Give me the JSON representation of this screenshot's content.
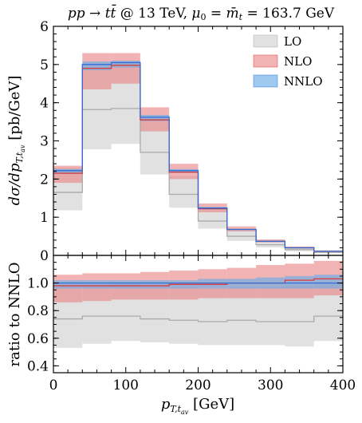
{
  "chart_data": {
    "type": "step-band",
    "title": "pp → tt̄ @ 13 TeV, μ₀ = m̄ₜ = 163.7 GeV",
    "xlabel": "p_{T,t_av} [GeV]",
    "ylabel_top": "dσ/dp_{T,t_av} [pb/GeV]",
    "ylabel_bottom": "ratio to NNLO",
    "xlim": [
      0,
      400
    ],
    "ylim_top": [
      0,
      6
    ],
    "ylim_bottom": [
      0.35,
      1.2
    ],
    "x_ticks": [
      "0",
      "100",
      "200",
      "300",
      "400"
    ],
    "y_ticks_top": [
      "0",
      "1",
      "2",
      "3",
      "4",
      "5",
      "6"
    ],
    "y_ticks_bottom": [
      "0.4",
      "0.6",
      "0.8",
      "1.0"
    ],
    "bin_edges": [
      0,
      40,
      80,
      120,
      160,
      200,
      240,
      280,
      320,
      360,
      400
    ],
    "legend_position": "top-right",
    "series": [
      {
        "name": "LO",
        "color": "#c8c8c8",
        "line_color": "#aaaaaa",
        "central": [
          1.65,
          3.82,
          3.85,
          2.7,
          1.6,
          0.9,
          0.5,
          0.28,
          0.15,
          0.08
        ],
        "lower": [
          1.18,
          2.78,
          2.92,
          2.12,
          1.25,
          0.7,
          0.38,
          0.21,
          0.11,
          0.06
        ],
        "upper": [
          2.3,
          4.95,
          4.95,
          3.55,
          2.08,
          1.18,
          0.65,
          0.37,
          0.2,
          0.11
        ],
        "ratio_central": [
          0.74,
          0.76,
          0.76,
          0.74,
          0.73,
          0.72,
          0.73,
          0.72,
          0.72,
          0.76
        ],
        "ratio_lower": [
          0.53,
          0.56,
          0.58,
          0.57,
          0.56,
          0.55,
          0.55,
          0.55,
          0.54,
          0.58
        ],
        "ratio_upper": [
          0.97,
          0.98,
          0.99,
          0.97,
          0.97,
          0.96,
          0.97,
          0.97,
          0.98,
          1.0
        ]
      },
      {
        "name": "NLO",
        "color": "#e88080",
        "line_color": "#d93a3a",
        "central": [
          2.15,
          4.9,
          4.98,
          3.55,
          2.18,
          1.22,
          0.68,
          0.37,
          0.2,
          0.11
        ],
        "lower": [
          1.9,
          4.35,
          4.5,
          3.25,
          2.0,
          1.13,
          0.63,
          0.34,
          0.18,
          0.1
        ],
        "upper": [
          2.35,
          5.3,
          5.3,
          3.88,
          2.4,
          1.36,
          0.76,
          0.42,
          0.23,
          0.13
        ],
        "ratio_central": [
          0.98,
          0.98,
          0.98,
          0.98,
          0.99,
          0.99,
          1.0,
          1.0,
          1.02,
          1.03
        ],
        "ratio_lower": [
          0.86,
          0.87,
          0.88,
          0.88,
          0.88,
          0.89,
          0.89,
          0.89,
          0.89,
          0.91
        ],
        "ratio_upper": [
          1.06,
          1.07,
          1.07,
          1.08,
          1.09,
          1.1,
          1.11,
          1.13,
          1.14,
          1.16
        ]
      },
      {
        "name": "NNLO",
        "color": "#6aaee8",
        "line_color": "#2f6fd6",
        "central": [
          2.22,
          5.0,
          5.05,
          3.62,
          2.22,
          1.24,
          0.68,
          0.37,
          0.2,
          0.11
        ],
        "lower": [
          2.15,
          4.85,
          4.92,
          3.52,
          2.16,
          1.2,
          0.66,
          0.36,
          0.19,
          0.1
        ],
        "upper": [
          2.26,
          5.08,
          5.1,
          3.68,
          2.26,
          1.27,
          0.7,
          0.38,
          0.21,
          0.12
        ],
        "ratio_central": [
          1.0,
          1.0,
          1.0,
          1.0,
          1.0,
          1.0,
          1.0,
          1.0,
          1.0,
          1.0
        ],
        "ratio_lower": [
          0.96,
          0.96,
          0.96,
          0.96,
          0.96,
          0.96,
          0.96,
          0.96,
          0.96,
          0.96
        ],
        "ratio_upper": [
          1.02,
          1.02,
          1.02,
          1.02,
          1.02,
          1.03,
          1.03,
          1.04,
          1.05,
          1.06
        ]
      }
    ]
  }
}
